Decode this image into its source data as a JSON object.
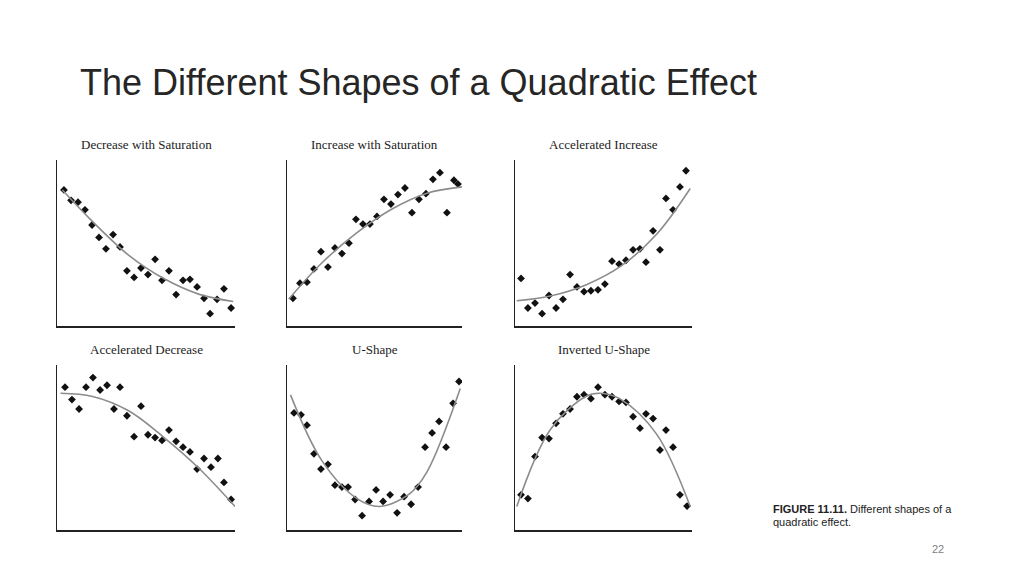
{
  "title": "The Different Shapes of a Quadratic Effect",
  "caption": {
    "label": "FIGURE 11.11.",
    "text": "Different shapes of a quadratic effect."
  },
  "page_number": "22",
  "chart_data": [
    {
      "type": "scatter",
      "title": "Decrease with Saturation",
      "x": [
        0.39,
        0.79,
        1.18,
        1.57,
        1.97,
        2.36,
        2.75,
        3.15,
        3.54,
        3.93,
        4.33,
        4.72,
        5.11,
        5.51,
        5.9,
        6.29,
        6.69,
        7.08,
        7.47,
        7.87,
        8.26,
        8.6,
        8.99,
        9.38,
        9.78
      ],
      "values": [
        8.61,
        7.95,
        7.83,
        7.35,
        6.39,
        5.6,
        4.88,
        5.78,
        5.0,
        3.49,
        3.07,
        3.67,
        3.25,
        4.22,
        2.89,
        3.49,
        1.99,
        2.89,
        2.95,
        2.47,
        1.75,
        0.78,
        1.69,
        2.35,
        1.14
      ],
      "color": "#111111",
      "marker": "diamond",
      "curve": {
        "x": [
          0.3,
          2,
          4,
          6,
          8,
          9.9
        ],
        "values": [
          8.6,
          6.6,
          4.5,
          3.0,
          2.0,
          1.55
        ],
        "color": "#8c8c8c",
        "line_style": "solid"
      },
      "xlim": [
        0,
        10
      ],
      "ylim": [
        0,
        10.5
      ],
      "grid": false,
      "tick_labels": false
    },
    {
      "type": "scatter",
      "title": "Increase with Saturation",
      "x": [
        0.34,
        0.74,
        1.14,
        1.54,
        1.94,
        2.34,
        2.74,
        3.14,
        3.54,
        3.94,
        4.34,
        4.74,
        5.14,
        5.54,
        5.94,
        6.34,
        6.74,
        7.14,
        7.54,
        7.94,
        8.34,
        8.74,
        9.14,
        9.54,
        9.77
      ],
      "values": [
        1.75,
        2.71,
        2.77,
        3.61,
        4.7,
        3.73,
        4.94,
        4.58,
        5.24,
        6.75,
        6.45,
        6.45,
        6.93,
        8.01,
        7.71,
        8.31,
        8.73,
        7.17,
        8.01,
        8.37,
        9.28,
        9.7,
        7.17,
        9.22,
        8.98
      ],
      "color": "#111111",
      "marker": "diamond",
      "curve": {
        "x": [
          0.1,
          2,
          4,
          6,
          8,
          10
        ],
        "values": [
          1.7,
          4.0,
          5.9,
          7.4,
          8.4,
          8.8
        ],
        "color": "#8c8c8c",
        "line_style": "solid"
      },
      "xlim": [
        0,
        10
      ],
      "ylim": [
        0,
        10.5
      ],
      "grid": false,
      "tick_labels": false
    },
    {
      "type": "scatter",
      "title": "Accelerated Increase",
      "x": [
        0.34,
        0.73,
        1.13,
        1.53,
        1.92,
        2.32,
        2.71,
        3.11,
        3.5,
        3.9,
        4.29,
        4.69,
        5.08,
        5.48,
        5.88,
        6.27,
        6.67,
        7.06,
        7.4,
        7.8,
        8.19,
        8.53,
        8.93,
        9.32,
        9.66
      ],
      "values": [
        3.01,
        1.14,
        1.45,
        0.78,
        1.93,
        1.14,
        1.69,
        3.25,
        2.47,
        2.17,
        2.23,
        2.29,
        2.65,
        4.1,
        3.92,
        4.16,
        4.82,
        4.88,
        4.04,
        6.02,
        4.82,
        8.07,
        7.35,
        8.8,
        9.82
      ],
      "color": "#111111",
      "marker": "diamond",
      "curve": {
        "x": [
          0.1,
          2,
          4,
          6,
          8,
          9.9
        ],
        "values": [
          1.6,
          1.9,
          2.6,
          3.8,
          5.8,
          8.7
        ],
        "color": "#8c8c8c",
        "line_style": "solid"
      },
      "xlim": [
        0,
        10
      ],
      "ylim": [
        0,
        10.5
      ],
      "grid": false,
      "tick_labels": false
    },
    {
      "type": "scatter",
      "title": "Accelerated Decrease",
      "x": [
        0.45,
        0.84,
        1.24,
        1.63,
        2.02,
        2.42,
        2.81,
        3.2,
        3.54,
        3.93,
        4.33,
        4.72,
        5.11,
        5.51,
        5.9,
        6.29,
        6.69,
        7.08,
        7.47,
        7.87,
        8.26,
        8.65,
        9.04,
        9.38,
        9.78
      ],
      "values": [
        9.09,
        8.3,
        7.7,
        9.09,
        9.7,
        8.91,
        9.21,
        7.7,
        9.09,
        7.27,
        5.94,
        7.88,
        6.06,
        5.88,
        5.7,
        6.36,
        5.64,
        5.27,
        4.97,
        3.88,
        4.55,
        4.0,
        4.55,
        3.03,
        1.94
      ],
      "color": "#111111",
      "marker": "diamond",
      "curve": {
        "x": [
          0.2,
          2,
          4,
          6,
          8,
          10
        ],
        "values": [
          8.7,
          8.5,
          7.6,
          5.9,
          3.9,
          1.5
        ],
        "color": "#8c8c8c",
        "line_style": "solid"
      },
      "xlim": [
        0,
        10
      ],
      "ylim": [
        0,
        10.5
      ],
      "grid": false,
      "tick_labels": false
    },
    {
      "type": "scatter",
      "title": "U-Shape",
      "x": [
        0.4,
        0.8,
        1.14,
        1.54,
        1.94,
        2.34,
        2.74,
        3.14,
        3.49,
        3.89,
        4.29,
        4.69,
        5.09,
        5.49,
        5.89,
        6.29,
        6.69,
        7.09,
        7.49,
        7.89,
        8.29,
        8.69,
        9.09,
        9.49,
        9.83
      ],
      "values": [
        7.45,
        7.33,
        6.67,
        4.85,
        3.88,
        4.18,
        2.85,
        2.73,
        2.73,
        1.94,
        0.91,
        1.82,
        2.55,
        1.82,
        2.24,
        1.09,
        2.12,
        1.64,
        2.73,
        5.27,
        6.18,
        6.91,
        5.27,
        8.06,
        9.45
      ],
      "color": "#111111",
      "marker": "diamond",
      "curve": {
        "x": [
          0.2,
          2,
          4,
          5.3,
          7,
          8,
          9.9
        ],
        "values": [
          8.6,
          4.4,
          2.0,
          1.5,
          2.3,
          3.7,
          9.0
        ],
        "color": "#8c8c8c",
        "line_style": "solid"
      },
      "xlim": [
        0,
        10
      ],
      "ylim": [
        0,
        10.5
      ],
      "grid": false,
      "tick_labels": false
    },
    {
      "type": "scatter",
      "title": "Inverted U-Shape",
      "x": [
        0.34,
        0.73,
        1.13,
        1.53,
        1.92,
        2.32,
        2.71,
        3.11,
        3.5,
        3.9,
        4.29,
        4.69,
        5.08,
        5.48,
        5.88,
        6.27,
        6.67,
        7.06,
        7.4,
        7.8,
        8.19,
        8.53,
        8.93,
        9.32,
        9.72
      ],
      "values": [
        2.24,
        2.0,
        4.67,
        5.88,
        5.82,
        6.79,
        7.39,
        7.7,
        8.48,
        8.61,
        8.36,
        9.09,
        8.61,
        8.48,
        8.18,
        8.12,
        7.21,
        6.48,
        7.39,
        7.09,
        5.09,
        6.36,
        5.27,
        2.24,
        1.52
      ],
      "color": "#111111",
      "marker": "diamond",
      "curve": {
        "x": [
          0.1,
          2,
          4,
          4.8,
          6,
          8,
          9.9
        ],
        "values": [
          1.5,
          6.4,
          8.5,
          8.7,
          8.3,
          6.1,
          1.5
        ],
        "color": "#8c8c8c",
        "line_style": "solid"
      },
      "xlim": [
        0,
        10
      ],
      "ylim": [
        0,
        10.5
      ],
      "grid": false,
      "tick_labels": false
    }
  ]
}
